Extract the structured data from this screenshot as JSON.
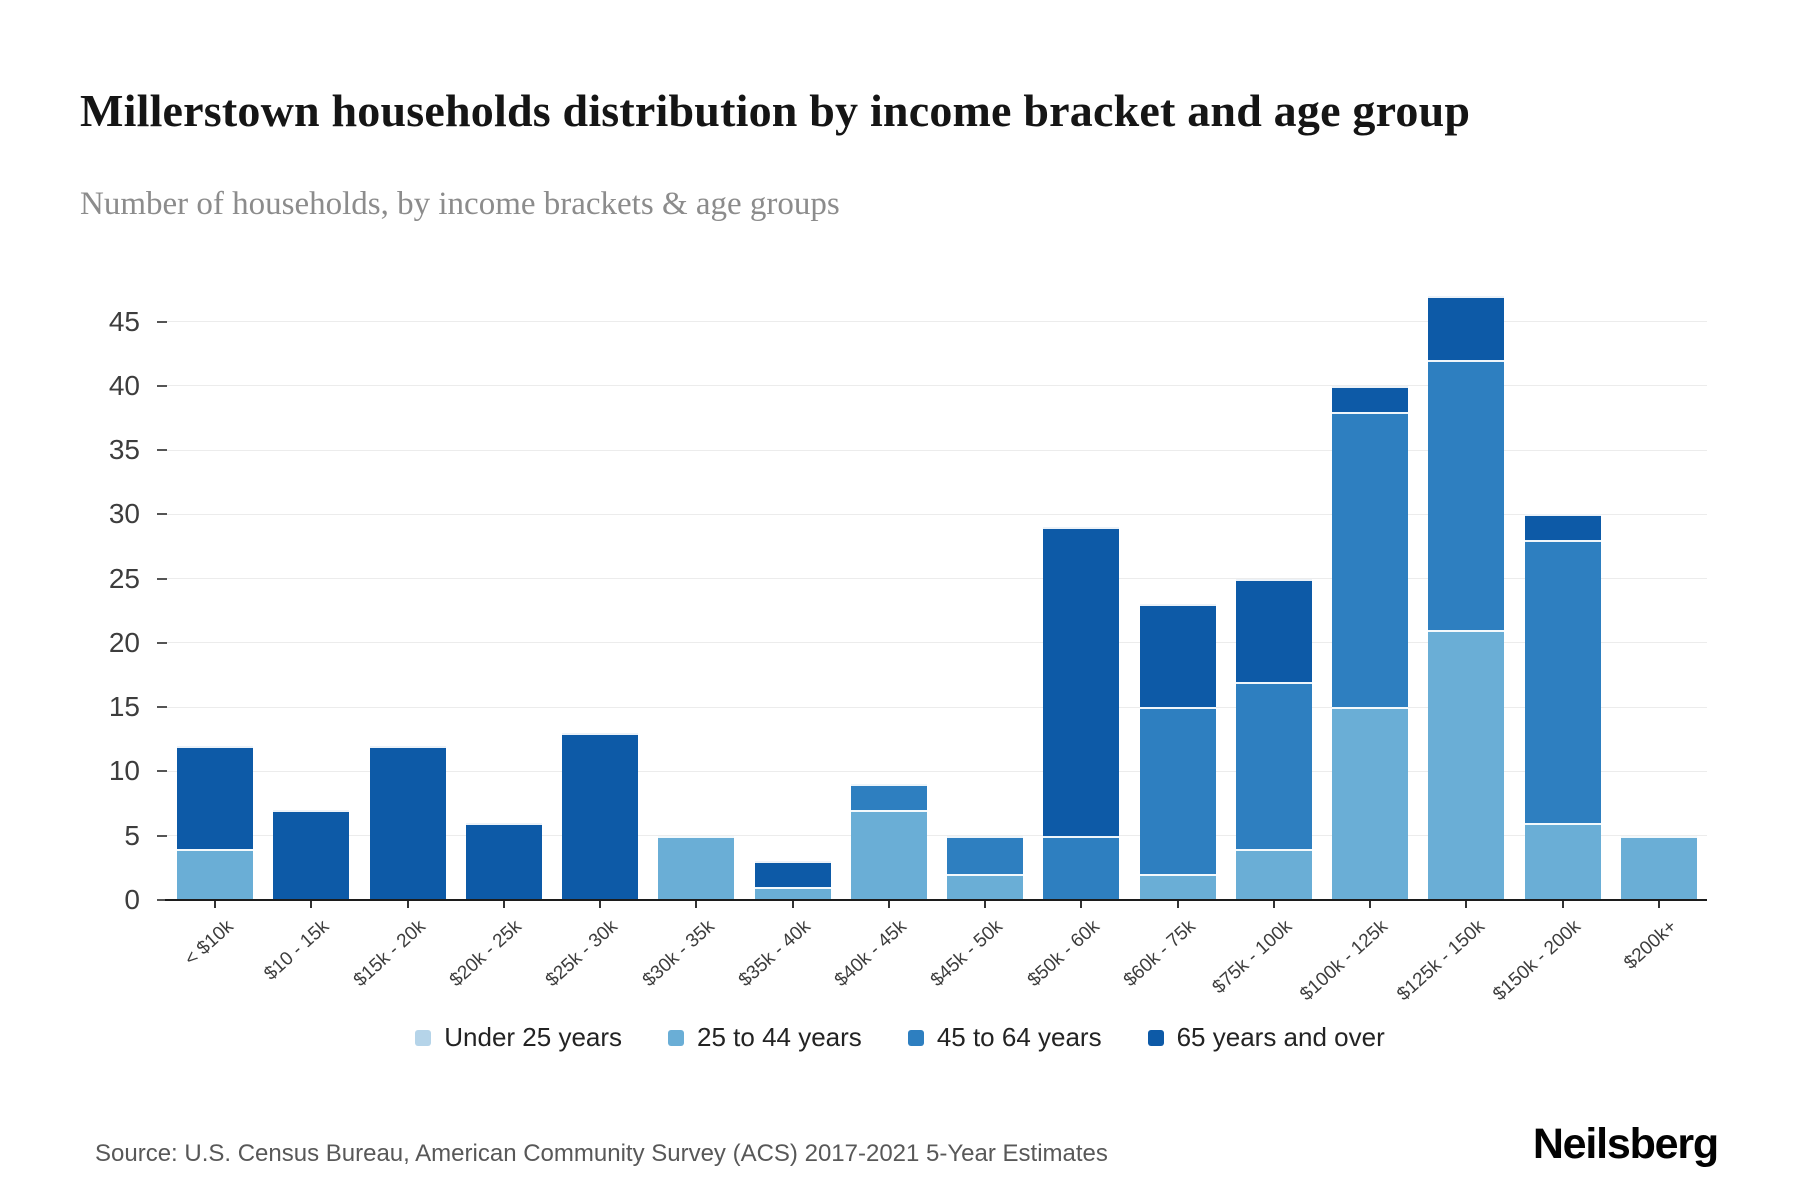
{
  "chart_data": {
    "type": "bar",
    "stacked": true,
    "title": "Millerstown households distribution by income bracket and age group",
    "subtitle": "Number of households, by income brackets & age groups",
    "categories": [
      "< $10k",
      "$10 - 15k",
      "$15k - 20k",
      "$20k - 25k",
      "$25k - 30k",
      "$30k - 35k",
      "$35k - 40k",
      "$40k - 45k",
      "$45k - 50k",
      "$50k - 60k",
      "$60k - 75k",
      "$75k - 100k",
      "$100k - 125k",
      "$125k - 150k",
      "$150k - 200k",
      "$200k+"
    ],
    "series": [
      {
        "name": "Under 25 years",
        "color": "#b5d4e9",
        "values": [
          0,
          0,
          0,
          0,
          0,
          0,
          0,
          0,
          0,
          0,
          0,
          0,
          0,
          0,
          0,
          0
        ]
      },
      {
        "name": "25 to 44 years",
        "color": "#6aaed6",
        "values": [
          4,
          0,
          0,
          0,
          0,
          5,
          1,
          7,
          2,
          0,
          2,
          4,
          15,
          21,
          6,
          5
        ]
      },
      {
        "name": "45 to 64 years",
        "color": "#2e7fc0",
        "values": [
          0,
          0,
          0,
          0,
          0,
          0,
          0,
          2,
          3,
          5,
          13,
          13,
          23,
          21,
          22,
          0
        ]
      },
      {
        "name": "65 years and over",
        "color": "#0d5aa7",
        "values": [
          8,
          7,
          12,
          6,
          13,
          0,
          2,
          0,
          0,
          24,
          8,
          8,
          2,
          5,
          2,
          0
        ]
      }
    ],
    "totals": [
      12,
      7,
      12,
      6,
      13,
      5,
      3,
      9,
      5,
      29,
      23,
      25,
      40,
      47,
      30,
      5
    ],
    "xlabel": "",
    "ylabel": "",
    "yticks": [
      0,
      5,
      10,
      15,
      20,
      25,
      30,
      35,
      40,
      45
    ],
    "ylim": [
      0,
      49.4
    ],
    "grid": true,
    "legend_position": "bottom"
  },
  "footer": {
    "source": "Source: U.S. Census Bureau, American Community Survey (ACS) 2017-2021 5-Year Estimates",
    "brand": "Neilsberg"
  }
}
